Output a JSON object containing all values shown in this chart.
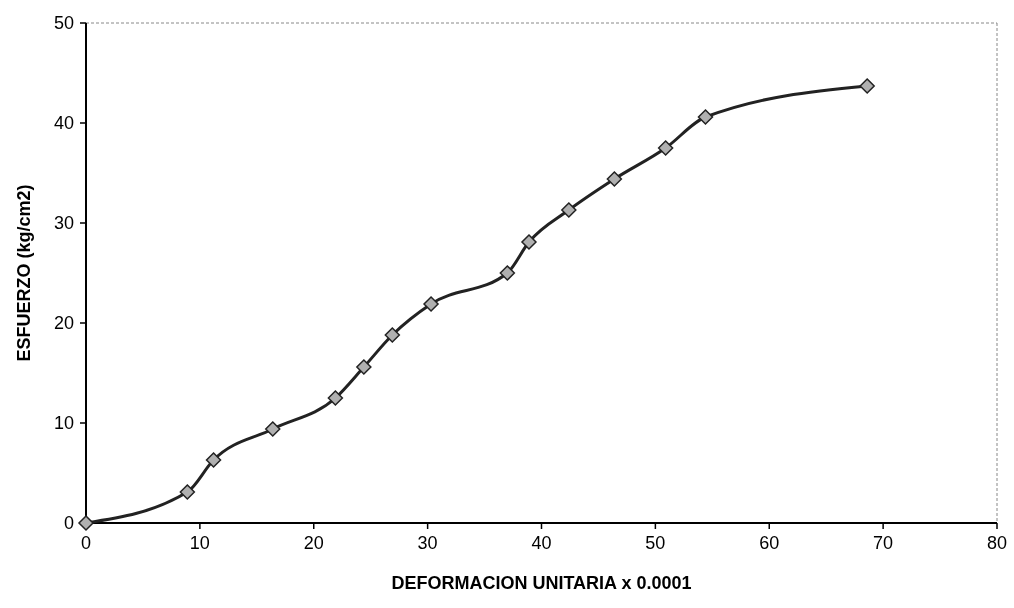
{
  "chart_data": {
    "type": "line",
    "xlabel": "DEFORMACION UNITARIA x 0.0001",
    "ylabel": "ESFUERZO (kg/cm2)",
    "x": [
      0,
      8.9,
      11.2,
      16.4,
      21.9,
      24.4,
      26.9,
      30.3,
      37.0,
      38.9,
      42.4,
      46.4,
      50.9,
      54.4,
      68.6
    ],
    "series": [
      {
        "color": "#222222",
        "values": [
          0,
          3.1,
          6.3,
          9.4,
          12.5,
          15.6,
          18.8,
          21.9,
          25.0,
          28.1,
          31.3,
          34.4,
          37.5,
          40.6,
          43.7
        ]
      }
    ],
    "xlim": [
      0,
      80
    ],
    "xticks": [
      0,
      10,
      20,
      30,
      40,
      50,
      60,
      70,
      80
    ],
    "ylim": [
      0,
      50
    ],
    "yticks": [
      0,
      10,
      20,
      30,
      40,
      50
    ],
    "grid": false,
    "marker": "diamond",
    "line_style": "solid"
  }
}
